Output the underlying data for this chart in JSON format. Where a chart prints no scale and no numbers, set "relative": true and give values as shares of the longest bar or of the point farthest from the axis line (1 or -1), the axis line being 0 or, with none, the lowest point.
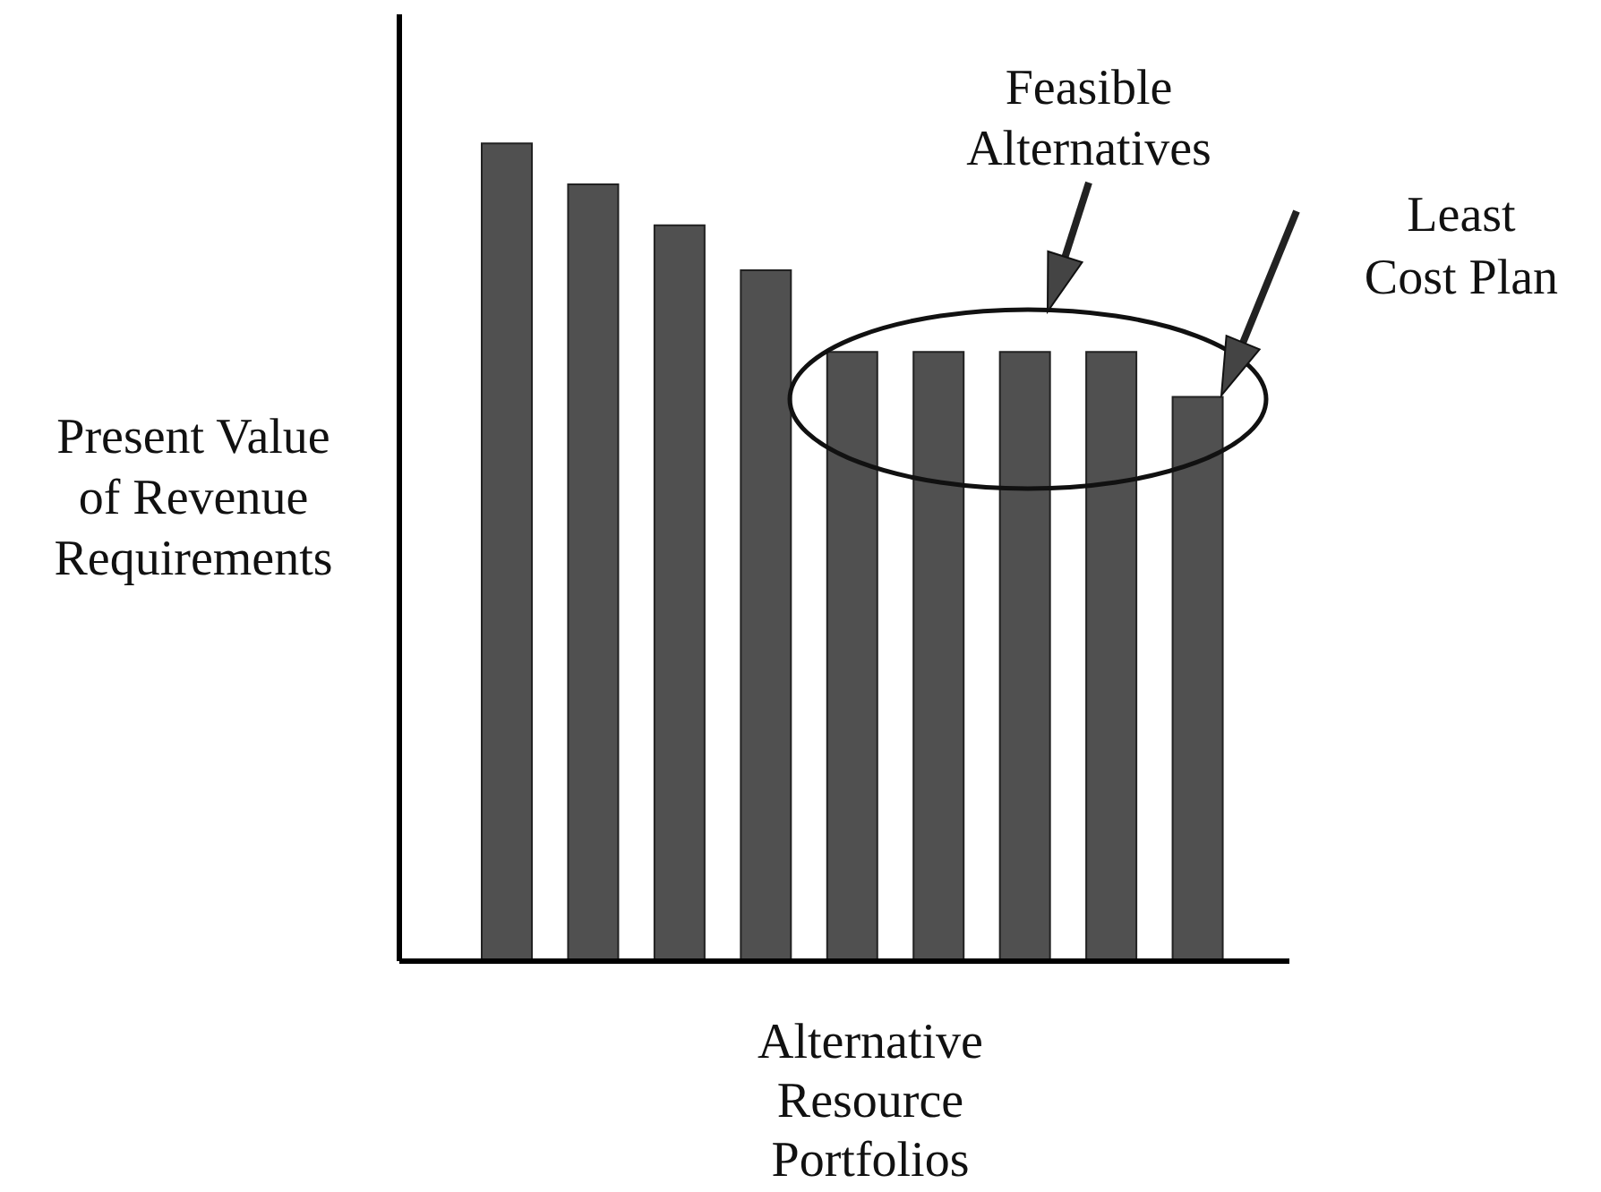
{
  "chart_data": {
    "type": "bar",
    "relative": true,
    "categories": [
      null,
      null,
      null,
      null,
      null,
      null,
      null,
      null,
      null
    ],
    "values": [
      1,
      0.95,
      0.9,
      0.845,
      0.745,
      0.745,
      0.745,
      0.745,
      0.69
    ],
    "color": "#505050",
    "ylabel": "Present Value\nof Revenue\nRequirements",
    "xlabel": "Alternative\nResource\nPortfolios",
    "annotations": [
      "Feasible\nAlternatives",
      "Least\nCost Plan"
    ]
  }
}
